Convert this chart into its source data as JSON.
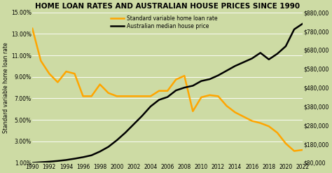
{
  "title": "HOME LOAN RATES AND AUSTRALIAN HOUSE PRICES SINCE 1990",
  "ylabel_left": "Standard variable home loan rate",
  "background_color": "#cddba4",
  "title_color": "#000000",
  "years": [
    1990,
    1991,
    1992,
    1993,
    1994,
    1995,
    1996,
    1997,
    1998,
    1999,
    2000,
    2001,
    2002,
    2003,
    2004,
    2005,
    2006,
    2007,
    2008,
    2009,
    2010,
    2011,
    2012,
    2013,
    2014,
    2015,
    2016,
    2017,
    2018,
    2019,
    2020,
    2021,
    2022
  ],
  "loan_rate": [
    0.135,
    0.105,
    0.093,
    0.085,
    0.095,
    0.093,
    0.072,
    0.072,
    0.083,
    0.075,
    0.072,
    0.072,
    0.072,
    0.072,
    0.072,
    0.077,
    0.077,
    0.0875,
    0.091,
    0.058,
    0.071,
    0.073,
    0.072,
    0.063,
    0.057,
    0.053,
    0.049,
    0.047,
    0.044,
    0.038,
    0.028,
    0.021,
    0.022
  ],
  "house_price": [
    80000,
    83000,
    86000,
    90000,
    95000,
    102000,
    110000,
    120000,
    140000,
    165000,
    200000,
    240000,
    285000,
    330000,
    380000,
    415000,
    430000,
    465000,
    480000,
    490000,
    515000,
    525000,
    545000,
    570000,
    595000,
    615000,
    635000,
    665000,
    630000,
    660000,
    700000,
    790000,
    820000
  ],
  "loan_color": "#FFA500",
  "house_color": "#000000",
  "legend_loan": "Standard variable home loan rate",
  "legend_house": "Australian median house price",
  "ylim_left": [
    0.01,
    0.15
  ],
  "ylim_right": [
    80000,
    880000
  ],
  "yticks_left": [
    0.01,
    0.03,
    0.05,
    0.07,
    0.09,
    0.11,
    0.13,
    0.15
  ],
  "yticks_right": [
    80000,
    180000,
    280000,
    380000,
    480000,
    580000,
    680000,
    780000,
    880000
  ],
  "xticks": [
    1990,
    1992,
    1994,
    1996,
    1998,
    2000,
    2002,
    2004,
    2006,
    2008,
    2010,
    2012,
    2014,
    2016,
    2018,
    2020,
    2022
  ],
  "title_fontsize": 7.5,
  "tick_fontsize": 5.5,
  "legend_fontsize": 5.5,
  "ylabel_fontsize": 5.5,
  "linewidth": 1.8
}
